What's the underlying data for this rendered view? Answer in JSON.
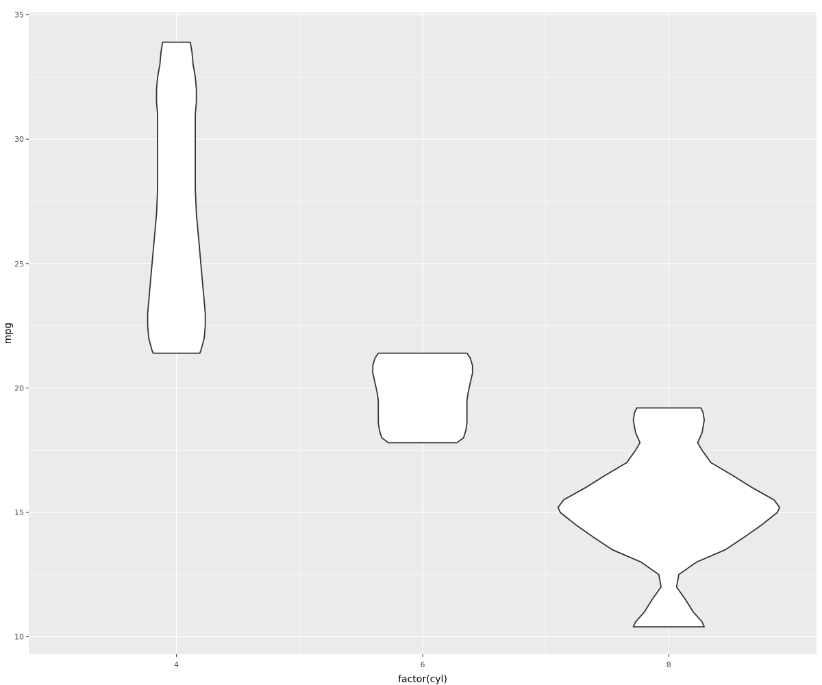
{
  "chart_data": {
    "type": "violin",
    "title": "",
    "xlabel": "factor(cyl)",
    "ylabel": "mpg",
    "categories": [
      "4",
      "6",
      "8"
    ],
    "x_values": [
      4,
      6,
      8
    ],
    "xlim": [
      2.8,
      9.2
    ],
    "ylim": [
      9.3,
      35.1
    ],
    "y_ticks": [
      10,
      15,
      20,
      25,
      30,
      35
    ],
    "x_ticks": [
      4,
      6,
      8
    ],
    "grid": true,
    "legend": "none",
    "colors": {
      "panel": "#EBEBEB",
      "grid": "#FFFFFF",
      "fill": "#FFFFFF",
      "outline": "#333333"
    },
    "violins": [
      {
        "category": "4",
        "x": 4,
        "profile": [
          [
            21.4,
            0.21
          ],
          [
            21.5,
            0.22
          ],
          [
            22.0,
            0.25
          ],
          [
            22.5,
            0.26
          ],
          [
            23.0,
            0.26
          ],
          [
            23.5,
            0.25
          ],
          [
            24.0,
            0.24
          ],
          [
            25.0,
            0.22
          ],
          [
            26.0,
            0.2
          ],
          [
            27.0,
            0.18
          ],
          [
            28.0,
            0.17
          ],
          [
            29.0,
            0.17
          ],
          [
            30.0,
            0.17
          ],
          [
            31.0,
            0.17
          ],
          [
            31.5,
            0.18
          ],
          [
            32.0,
            0.18
          ],
          [
            32.5,
            0.17
          ],
          [
            33.0,
            0.15
          ],
          [
            33.5,
            0.14
          ],
          [
            33.9,
            0.125
          ]
        ]
      },
      {
        "category": "6",
        "x": 6,
        "profile": [
          [
            17.8,
            0.31
          ],
          [
            18.0,
            0.37
          ],
          [
            18.3,
            0.39
          ],
          [
            18.6,
            0.4
          ],
          [
            19.0,
            0.4
          ],
          [
            19.5,
            0.4
          ],
          [
            19.8,
            0.41
          ],
          [
            20.2,
            0.43
          ],
          [
            20.6,
            0.45
          ],
          [
            20.9,
            0.45
          ],
          [
            21.2,
            0.43
          ],
          [
            21.4,
            0.4
          ]
        ]
      },
      {
        "category": "8",
        "x": 8,
        "profile": [
          [
            10.4,
            0.32
          ],
          [
            10.6,
            0.3
          ],
          [
            11.0,
            0.22
          ],
          [
            11.5,
            0.15
          ],
          [
            12.0,
            0.07
          ],
          [
            12.5,
            0.09
          ],
          [
            13.0,
            0.25
          ],
          [
            13.5,
            0.51
          ],
          [
            14.0,
            0.68
          ],
          [
            14.5,
            0.84
          ],
          [
            15.0,
            0.98
          ],
          [
            15.2,
            1.0
          ],
          [
            15.5,
            0.95
          ],
          [
            16.0,
            0.75
          ],
          [
            16.5,
            0.57
          ],
          [
            17.0,
            0.38
          ],
          [
            17.5,
            0.3
          ],
          [
            17.8,
            0.26
          ],
          [
            18.2,
            0.3
          ],
          [
            18.7,
            0.32
          ],
          [
            19.0,
            0.31
          ],
          [
            19.2,
            0.29
          ]
        ]
      }
    ]
  }
}
